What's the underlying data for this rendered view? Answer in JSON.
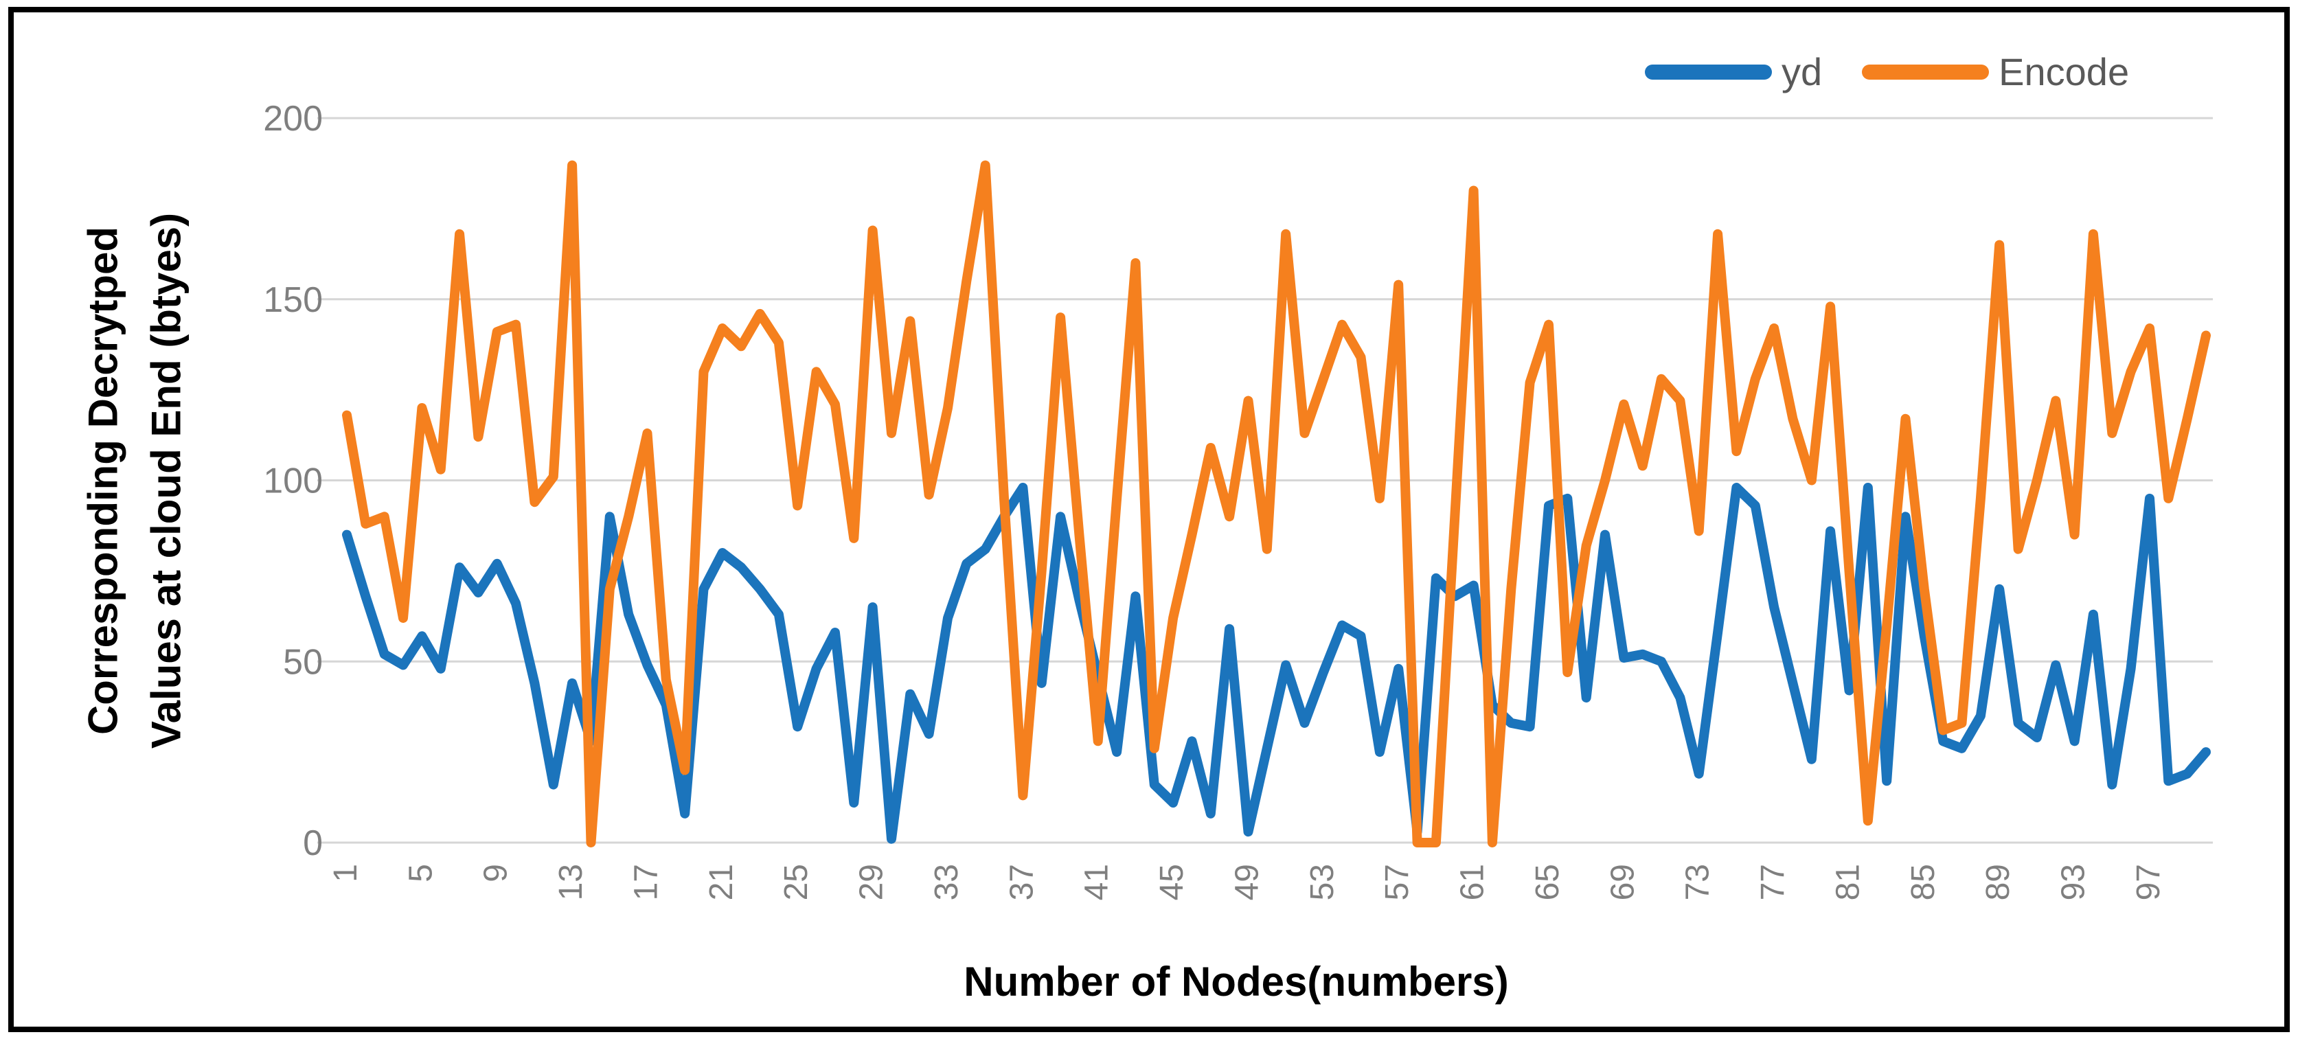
{
  "chart_data": {
    "type": "line",
    "title": "",
    "xlabel": "Number of Nodes(numbers)",
    "ylabel_line1": "Corresponding Decrytped",
    "ylabel_line2": "Values at cloud End (btyes)",
    "ylim": [
      0,
      200
    ],
    "yticks": [
      0,
      50,
      100,
      150,
      200
    ],
    "xticks": [
      1,
      5,
      9,
      13,
      17,
      21,
      25,
      29,
      33,
      37,
      41,
      45,
      49,
      53,
      57,
      61,
      65,
      69,
      73,
      77,
      81,
      85,
      89,
      93,
      97
    ],
    "x_count": 100,
    "grid": true,
    "legend_position": "top-right",
    "axis_text_color": "#7F7F7F",
    "grid_color": "#D6D6D6",
    "series": [
      {
        "name": "yd",
        "color": "#1B74BC",
        "values": [
          85,
          68,
          52,
          49,
          57,
          48,
          76,
          69,
          77,
          66,
          44,
          16,
          44,
          28,
          90,
          63,
          49,
          38,
          8,
          70,
          80,
          76,
          70,
          63,
          32,
          48,
          58,
          11,
          65,
          1,
          41,
          30,
          62,
          77,
          81,
          90,
          98,
          44,
          90,
          67,
          46,
          25,
          68,
          16,
          11,
          28,
          8,
          59,
          3,
          26,
          49,
          33,
          47,
          60,
          57,
          25,
          48,
          3,
          73,
          68,
          71,
          38,
          33,
          32,
          93,
          95,
          40,
          85,
          51,
          52,
          50,
          40,
          19,
          58,
          98,
          93,
          65,
          44,
          23,
          86,
          42,
          98,
          17,
          90,
          57,
          28,
          26,
          35,
          70,
          33,
          29,
          49,
          28,
          63,
          16,
          48,
          95,
          17,
          19,
          25
        ]
      },
      {
        "name": "Encode",
        "color": "#F5801E",
        "values": [
          118,
          88,
          90,
          62,
          120,
          103,
          168,
          112,
          141,
          143,
          94,
          101,
          187,
          0,
          70,
          90,
          113,
          45,
          20,
          130,
          142,
          137,
          146,
          138,
          93,
          130,
          121,
          84,
          169,
          113,
          144,
          96,
          120,
          155,
          187,
          95,
          13,
          75,
          145,
          85,
          28,
          95,
          160,
          26,
          62,
          85,
          109,
          90,
          122,
          81,
          168,
          113,
          128,
          143,
          134,
          95,
          154,
          0,
          0,
          90,
          180,
          0,
          70,
          127,
          143,
          47,
          82,
          100,
          121,
          104,
          128,
          122,
          86,
          168,
          108,
          128,
          142,
          117,
          100,
          148,
          75,
          6,
          60,
          117,
          70,
          31,
          33,
          95,
          165,
          81,
          100,
          122,
          85,
          168,
          113,
          130,
          142,
          95,
          117,
          140
        ]
      }
    ]
  },
  "legend": {
    "items": [
      {
        "label": "yd"
      },
      {
        "label": "Encode"
      }
    ]
  }
}
